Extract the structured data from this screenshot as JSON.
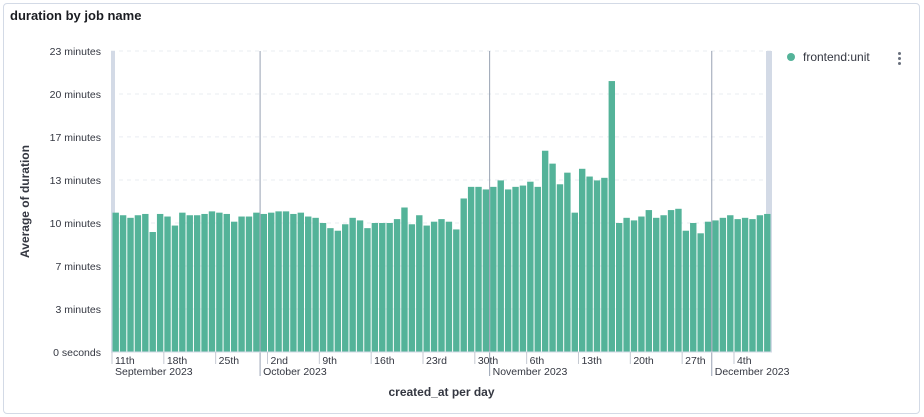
{
  "panel": {
    "title": "duration by job name"
  },
  "legend": {
    "label": "frontend:unit",
    "color": "#54b399"
  },
  "chart_data": {
    "type": "bar",
    "xlabel": "created_at per day",
    "ylabel": "Average of duration",
    "ylim": [
      0,
      23
    ],
    "y_ticks": [
      {
        "label": "0 seconds",
        "value": 0
      },
      {
        "label": "3 minutes",
        "value": 3.33
      },
      {
        "label": "7 minutes",
        "value": 6.67
      },
      {
        "label": "10 minutes",
        "value": 10
      },
      {
        "label": "13 minutes",
        "value": 13.33
      },
      {
        "label": "17 minutes",
        "value": 16.67
      },
      {
        "label": "20 minutes",
        "value": 20
      },
      {
        "label": "23 minutes",
        "value": 23.33
      }
    ],
    "x_ticks": [
      {
        "label": "11th",
        "index": 0
      },
      {
        "label": "18th",
        "index": 7
      },
      {
        "label": "25th",
        "index": 14
      },
      {
        "label": "2nd",
        "index": 21
      },
      {
        "label": "9th",
        "index": 28
      },
      {
        "label": "16th",
        "index": 35
      },
      {
        "label": "23rd",
        "index": 42
      },
      {
        "label": "30th",
        "index": 49
      },
      {
        "label": "6th",
        "index": 56
      },
      {
        "label": "13th",
        "index": 63
      },
      {
        "label": "20th",
        "index": 70
      },
      {
        "label": "27th",
        "index": 77
      },
      {
        "label": "4th",
        "index": 84
      }
    ],
    "month_labels": [
      {
        "label": "September 2023",
        "index": 0
      },
      {
        "label": "October 2023",
        "index": 20
      },
      {
        "label": "November 2023",
        "index": 51
      },
      {
        "label": "December 2023",
        "index": 81
      }
    ],
    "month_boundaries": [
      20,
      51,
      81
    ],
    "series": [
      {
        "name": "frontend:unit",
        "color": "#54b399",
        "values": [
          10.8,
          10.6,
          10.4,
          10.6,
          10.7,
          9.3,
          10.7,
          10.5,
          9.8,
          10.8,
          10.6,
          10.6,
          10.7,
          10.9,
          10.8,
          10.7,
          10.1,
          10.5,
          10.5,
          10.8,
          10.7,
          10.8,
          10.9,
          10.9,
          10.7,
          10.8,
          10.5,
          10.4,
          10.0,
          9.6,
          9.4,
          9.9,
          10.4,
          10.2,
          9.6,
          10.0,
          10.0,
          10.0,
          10.3,
          11.2,
          9.9,
          10.6,
          9.8,
          10.1,
          10.3,
          10.1,
          9.5,
          11.9,
          12.8,
          12.8,
          12.6,
          12.8,
          13.3,
          12.6,
          12.8,
          12.9,
          13.2,
          12.8,
          15.6,
          14.6,
          13.0,
          13.9,
          10.8,
          14.2,
          13.6,
          13.3,
          13.5,
          21.0,
          10.0,
          10.4,
          10.2,
          10.5,
          11.0,
          10.4,
          10.6,
          11.0,
          11.1,
          9.4,
          10.0,
          9.2,
          10.1,
          10.2,
          10.4,
          10.6,
          10.3,
          10.4,
          10.3,
          10.6,
          10.7
        ]
      }
    ]
  }
}
